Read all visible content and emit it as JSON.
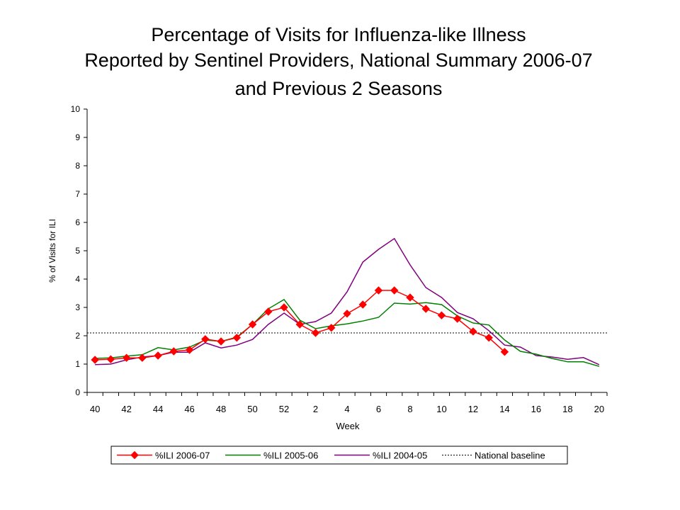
{
  "chart_data": {
    "type": "line",
    "title": [
      "Percentage of Visits for Influenza-like Illness",
      "Reported by Sentinel Providers, National Summary 2006-07",
      "and Previous 2 Seasons"
    ],
    "xlabel": "Week",
    "ylabel": "% of Visits for ILI",
    "categories": [
      "40",
      null,
      "42",
      null,
      "44",
      null,
      "46",
      null,
      "48",
      null,
      "50",
      null,
      "52",
      null,
      "2",
      null,
      "4",
      null,
      "6",
      null,
      "8",
      null,
      "10",
      null,
      "12",
      null,
      "14",
      null,
      "16",
      null,
      "18",
      null,
      "20"
    ],
    "series": [
      {
        "name": "%ILI 2006-07",
        "color": "#ff0000",
        "marker": "diamond",
        "values": [
          1.15,
          1.17,
          1.22,
          1.22,
          1.3,
          1.45,
          1.5,
          1.88,
          1.8,
          1.93,
          2.4,
          2.85,
          3.0,
          2.4,
          2.1,
          2.28,
          2.78,
          3.1,
          3.6,
          3.6,
          3.35,
          2.95,
          2.72,
          2.6,
          2.15,
          1.93,
          1.43,
          null,
          null,
          null,
          null,
          null,
          null
        ]
      },
      {
        "name": "%ILI 2005-06",
        "color": "#008000",
        "values": [
          1.2,
          1.22,
          1.28,
          1.33,
          1.58,
          1.5,
          1.6,
          1.85,
          1.8,
          1.95,
          2.4,
          2.95,
          3.28,
          2.55,
          2.25,
          2.35,
          2.42,
          2.52,
          2.65,
          3.15,
          3.12,
          3.17,
          3.1,
          2.7,
          2.45,
          2.38,
          1.85,
          1.45,
          1.35,
          1.2,
          1.08,
          1.08,
          0.92
        ]
      },
      {
        "name": "%ILI 2004-05",
        "color": "#800080",
        "values": [
          0.98,
          1.0,
          1.15,
          1.25,
          1.3,
          1.42,
          1.42,
          1.75,
          1.57,
          1.67,
          1.87,
          2.4,
          2.8,
          2.4,
          2.5,
          2.8,
          3.55,
          4.6,
          5.05,
          5.43,
          4.5,
          3.7,
          3.35,
          2.82,
          2.6,
          2.18,
          1.67,
          1.6,
          1.3,
          1.25,
          1.17,
          1.23,
          0.98
        ]
      }
    ],
    "baseline": {
      "name": "National baseline",
      "value": 2.1,
      "color": "#000000"
    },
    "ylim": [
      0,
      10
    ],
    "yticks": [
      0,
      1,
      2,
      3,
      4,
      5,
      6,
      7,
      8,
      9,
      10
    ],
    "grid": false,
    "legend": "bottom"
  }
}
